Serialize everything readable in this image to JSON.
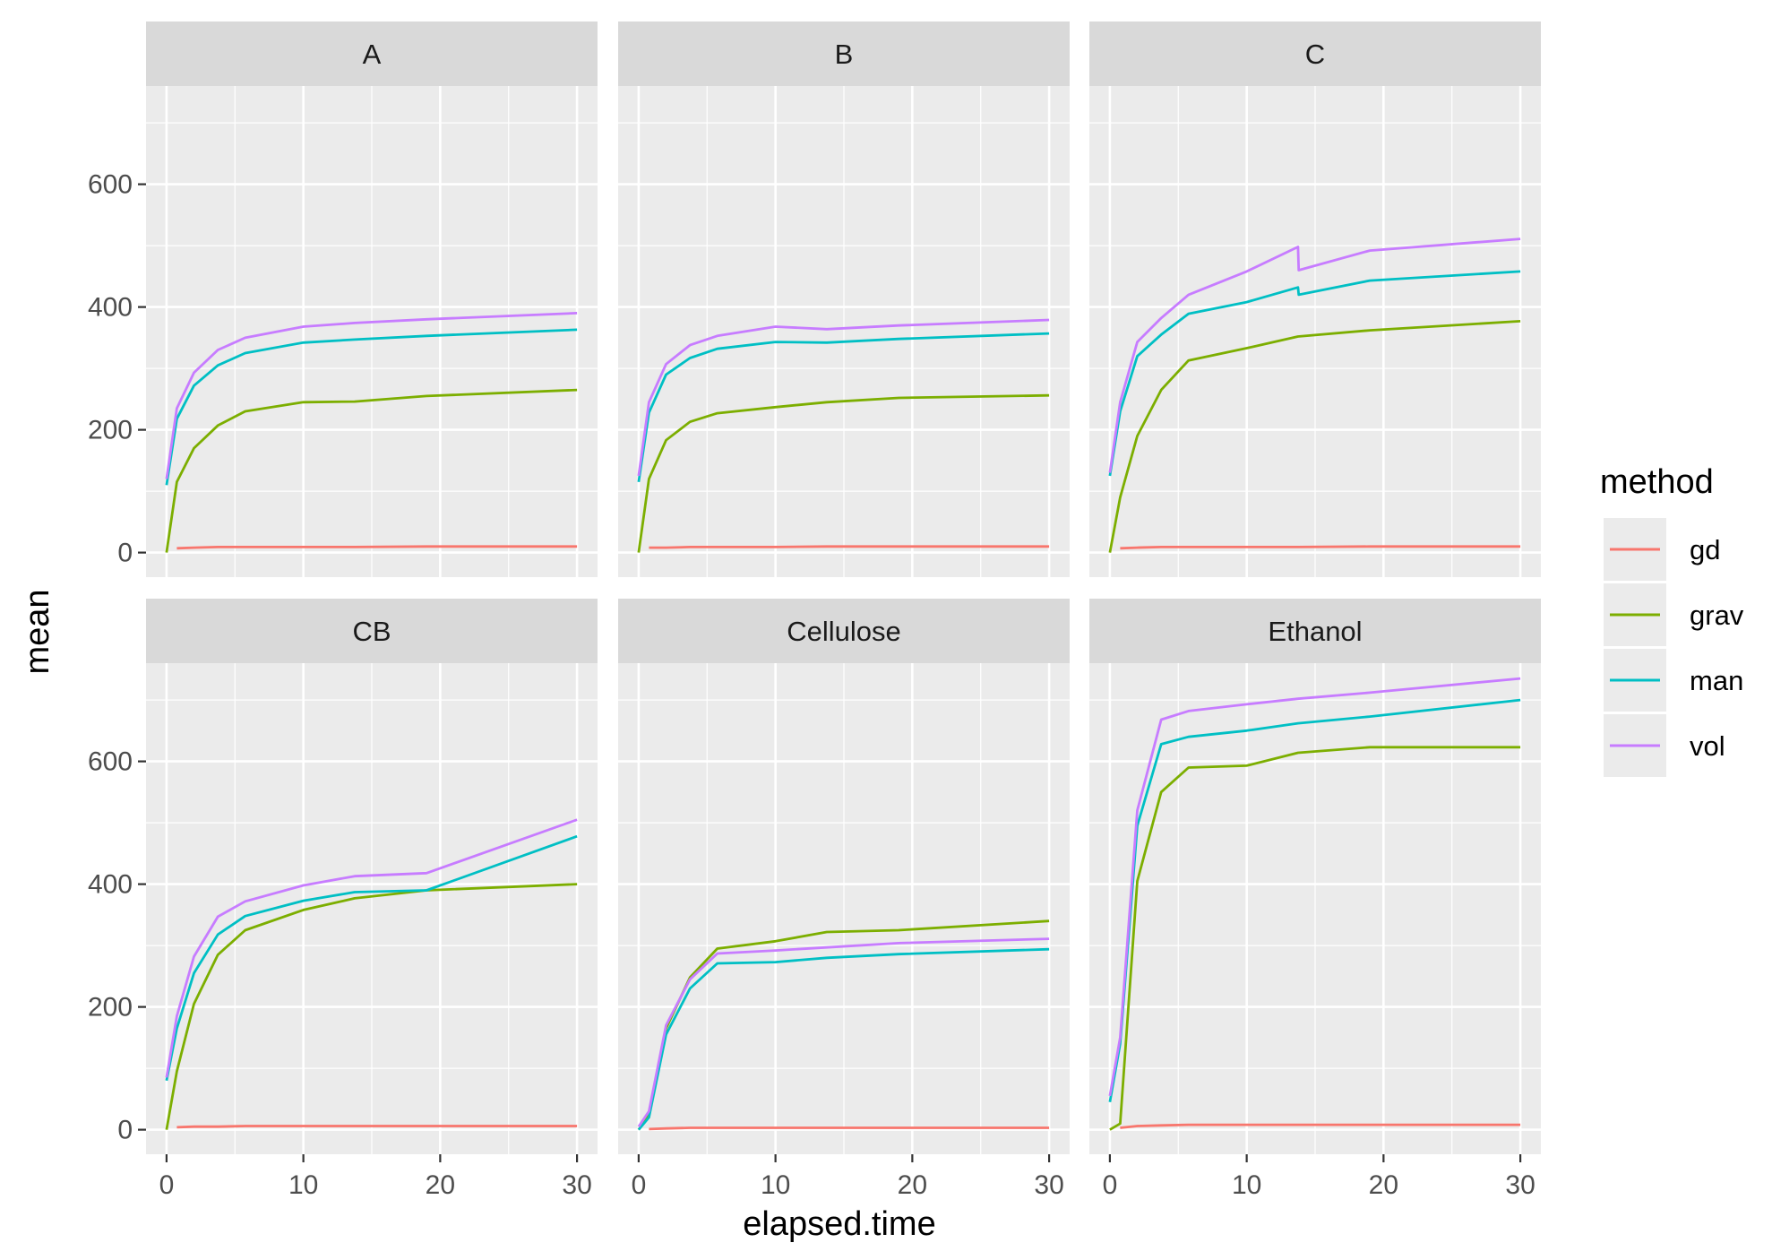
{
  "chart_data": {
    "type": "line",
    "xlabel": "elapsed.time",
    "ylabel": "mean",
    "xlim": [
      -1.5,
      31.5
    ],
    "ylim": [
      -40,
      760
    ],
    "x_ticks": [
      "0",
      "10",
      "20",
      "30"
    ],
    "x_tick_values": [
      0,
      10,
      20,
      30
    ],
    "y_ticks": [
      "0",
      "200",
      "400",
      "600"
    ],
    "y_tick_values": [
      0,
      200,
      400,
      600
    ],
    "grid": true,
    "legend": {
      "title": "method",
      "position": "right",
      "entries": [
        {
          "name": "gd",
          "color": "#F8766D"
        },
        {
          "name": "grav",
          "color": "#7CAE00"
        },
        {
          "name": "man",
          "color": "#00BFC4"
        },
        {
          "name": "vol",
          "color": "#C77CFF"
        }
      ]
    },
    "panels": [
      {
        "label": "A",
        "series": [
          {
            "name": "gd",
            "x": [
              0.75,
              2,
              3.75,
              5.75,
              10,
              13.75,
              19,
              30
            ],
            "y": [
              7,
              8,
              9,
              9,
              9,
              9,
              10,
              10
            ]
          },
          {
            "name": "grav",
            "x": [
              0,
              0.75,
              2,
              3.75,
              5.75,
              10,
              13.75,
              19,
              30
            ],
            "y": [
              0,
              115,
              170,
              207,
              230,
              245,
              246,
              255,
              265
            ]
          },
          {
            "name": "man",
            "x": [
              0,
              0.75,
              2,
              3.75,
              5.75,
              10,
              13.75,
              19,
              30
            ],
            "y": [
              110,
              218,
              272,
              305,
              325,
              342,
              347,
              353,
              363
            ]
          },
          {
            "name": "vol",
            "x": [
              0,
              0.75,
              2,
              3.75,
              5.75,
              10,
              13.75,
              19,
              30
            ],
            "y": [
              120,
              235,
              293,
              330,
              350,
              368,
              374,
              380,
              390
            ]
          }
        ]
      },
      {
        "label": "B",
        "series": [
          {
            "name": "gd",
            "x": [
              0.75,
              2,
              3.75,
              5.75,
              10,
              13.75,
              19,
              30
            ],
            "y": [
              8,
              8,
              9,
              9,
              9,
              10,
              10,
              10
            ]
          },
          {
            "name": "grav",
            "x": [
              0,
              0.75,
              2,
              3.75,
              5.75,
              10,
              13.75,
              19,
              30
            ],
            "y": [
              0,
              120,
              183,
              213,
              227,
              237,
              245,
              252,
              256
            ]
          },
          {
            "name": "man",
            "x": [
              0,
              0.75,
              2,
              3.75,
              5.75,
              10,
              13.75,
              19,
              30
            ],
            "y": [
              115,
              228,
              290,
              317,
              332,
              343,
              342,
              348,
              357
            ]
          },
          {
            "name": "vol",
            "x": [
              0,
              0.75,
              2,
              3.75,
              5.75,
              10,
              13.75,
              19,
              30
            ],
            "y": [
              125,
              245,
              307,
              338,
              353,
              368,
              364,
              370,
              379
            ]
          }
        ]
      },
      {
        "label": "C",
        "series": [
          {
            "name": "gd",
            "x": [
              0.75,
              2,
              3.75,
              5.75,
              10,
              13.75,
              19,
              30
            ],
            "y": [
              7,
              8,
              9,
              9,
              9,
              9,
              10,
              10
            ]
          },
          {
            "name": "grav",
            "x": [
              0,
              0.75,
              2,
              3.75,
              5.75,
              10,
              13.75,
              19,
              30
            ],
            "y": [
              0,
              90,
              190,
              265,
              313,
              333,
              352,
              362,
              377
            ]
          },
          {
            "name": "man",
            "x": [
              0,
              0.75,
              2,
              3.75,
              5.75,
              10,
              13.75,
              13.8,
              19,
              30
            ],
            "y": [
              125,
              230,
              320,
              355,
              389,
              408,
              432,
              420,
              443,
              458
            ]
          },
          {
            "name": "vol",
            "x": [
              0,
              0.75,
              2,
              3.75,
              5.75,
              10,
              13.75,
              13.8,
              19,
              30
            ],
            "y": [
              130,
              245,
              343,
              382,
              420,
              458,
              498,
              460,
              492,
              511
            ]
          }
        ]
      },
      {
        "label": "CB",
        "series": [
          {
            "name": "gd",
            "x": [
              0.75,
              2,
              3.75,
              5.75,
              10,
              13.75,
              19,
              30
            ],
            "y": [
              4,
              5,
              5,
              6,
              6,
              6,
              6,
              6
            ]
          },
          {
            "name": "grav",
            "x": [
              0,
              0.75,
              2,
              3.75,
              5.75,
              10,
              13.75,
              19,
              30
            ],
            "y": [
              0,
              95,
              205,
              285,
              325,
              358,
              377,
              390,
              400
            ]
          },
          {
            "name": "man",
            "x": [
              0,
              0.75,
              2,
              3.75,
              5.75,
              10,
              13.75,
              19,
              30
            ],
            "y": [
              80,
              165,
              255,
              318,
              348,
              373,
              387,
              390,
              478
            ]
          },
          {
            "name": "vol",
            "x": [
              0,
              0.75,
              2,
              3.75,
              5.75,
              10,
              13.75,
              19,
              30
            ],
            "y": [
              85,
              185,
              282,
              347,
              372,
              398,
              413,
              418,
              505
            ]
          }
        ]
      },
      {
        "label": "Cellulose",
        "series": [
          {
            "name": "gd",
            "x": [
              0.75,
              2,
              3.75,
              5.75,
              10,
              13.75,
              19,
              30
            ],
            "y": [
              1,
              2,
              3,
              3,
              3,
              3,
              3,
              3
            ]
          },
          {
            "name": "grav",
            "x": [
              0,
              0.75,
              2,
              3.75,
              5.75,
              10,
              13.75,
              19,
              30
            ],
            "y": [
              0,
              25,
              165,
              248,
              295,
              307,
              322,
              325,
              340
            ]
          },
          {
            "name": "man",
            "x": [
              0,
              0.75,
              2,
              3.75,
              5.75,
              10,
              13.75,
              19,
              30
            ],
            "y": [
              0,
              20,
              155,
              230,
              271,
              273,
              280,
              286,
              294
            ]
          },
          {
            "name": "vol",
            "x": [
              0,
              0.75,
              2,
              3.75,
              5.75,
              10,
              13.75,
              19,
              30
            ],
            "y": [
              5,
              30,
              170,
              245,
              287,
              292,
              297,
              304,
              311
            ]
          }
        ]
      },
      {
        "label": "Ethanol",
        "series": [
          {
            "name": "gd",
            "x": [
              0.75,
              2,
              3.75,
              5.75,
              10,
              13.75,
              19,
              30
            ],
            "y": [
              3,
              6,
              7,
              8,
              8,
              8,
              8,
              8
            ]
          },
          {
            "name": "grav",
            "x": [
              0,
              0.75,
              2,
              3.75,
              5.75,
              10,
              13.75,
              19,
              30
            ],
            "y": [
              0,
              10,
              405,
              550,
              590,
              593,
              614,
              623,
              623
            ]
          },
          {
            "name": "man",
            "x": [
              0,
              0.75,
              2,
              3.75,
              5.75,
              10,
              13.75,
              19,
              30
            ],
            "y": [
              45,
              140,
              495,
              628,
              640,
              650,
              662,
              673,
              700
            ]
          },
          {
            "name": "vol",
            "x": [
              0,
              0.75,
              2,
              3.75,
              5.75,
              10,
              13.75,
              19,
              30
            ],
            "y": [
              55,
              150,
              520,
              668,
              682,
              693,
              702,
              712,
              735
            ]
          }
        ]
      }
    ]
  }
}
